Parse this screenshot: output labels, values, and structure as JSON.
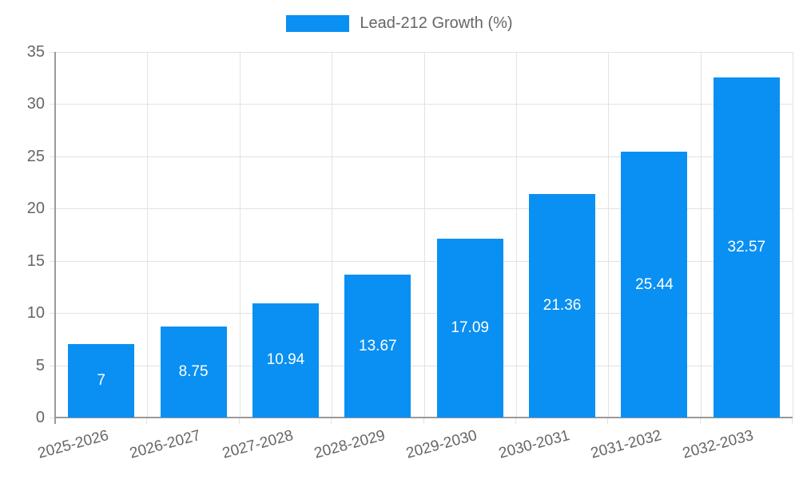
{
  "chart_data": {
    "type": "bar",
    "title": "",
    "legend_label": "Lead-212 Growth (%)",
    "legend_position": "top",
    "categories": [
      "2025-2026",
      "2026-2027",
      "2027-2028",
      "2028-2029",
      "2029-2030",
      "2030-2031",
      "2031-2032",
      "2032-2033"
    ],
    "series": [
      {
        "name": "Lead-212 Growth (%)",
        "values": [
          7,
          8.75,
          10.94,
          13.67,
          17.09,
          21.36,
          25.44,
          32.57
        ]
      }
    ],
    "value_labels": [
      "7",
      "8.75",
      "10.94",
      "13.67",
      "17.09",
      "21.36",
      "25.44",
      "32.57"
    ],
    "xlabel": "",
    "ylabel": "",
    "ylim": [
      0,
      35
    ],
    "yticks": [
      0,
      5,
      10,
      15,
      20,
      25,
      30,
      35
    ],
    "grid": true,
    "x_label_rotation_deg": -15
  },
  "colors": {
    "bar": "#0a90f2",
    "grid": "#e2e2e2",
    "spine": "#9a9a9a",
    "axis_text": "#666666",
    "value_text": "#ffffff",
    "background": "#ffffff"
  }
}
